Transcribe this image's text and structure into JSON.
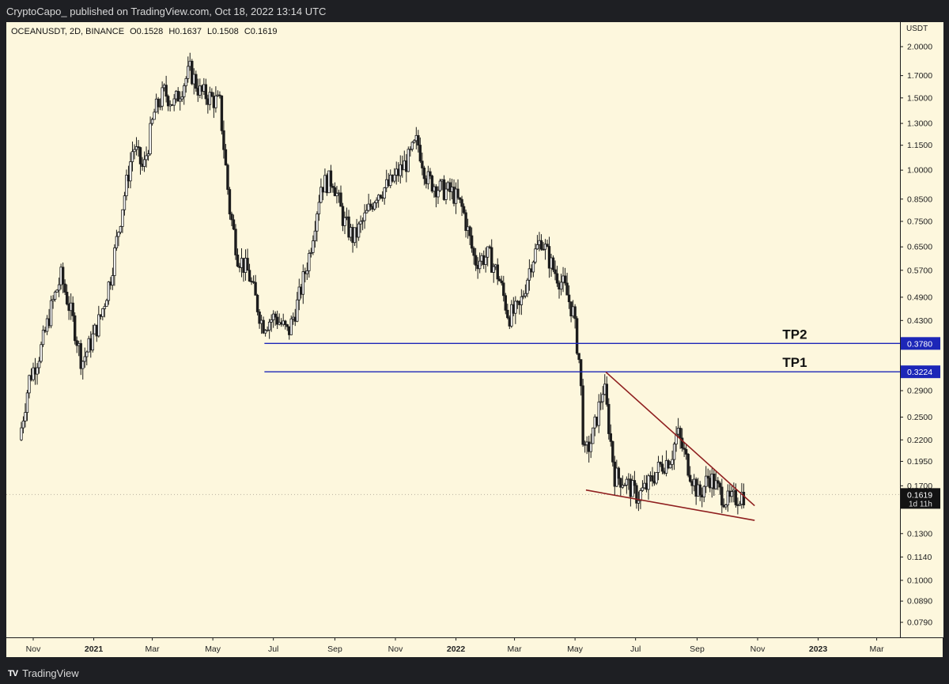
{
  "header": {
    "published_by": "CryptoCapo_ published on TradingView.com, Oct 18, 2022 13:14 UTC"
  },
  "symbol": {
    "name": "OCEANUSDT, 2D, BINANCE",
    "open": "O0.1528",
    "high": "H0.1637",
    "low": "L0.1508",
    "close": "C0.1619"
  },
  "footer": {
    "brand": "TradingView",
    "logo_text": "TV"
  },
  "colors": {
    "background": "#fdf7dd",
    "candle_body": "#1c1c1c",
    "tp_line": "#1c26b8",
    "wedge_line": "#8f1f1f",
    "frame": "#1e1f23"
  },
  "chart_data": {
    "type": "candlestick",
    "title": "OCEANUSDT, 2D, BINANCE",
    "ylabel": "USDT",
    "yscale": "log",
    "ylim": [
      0.07,
      2.4
    ],
    "x_ticks": [
      "Nov",
      "2021",
      "Mar",
      "May",
      "Jul",
      "Sep",
      "Nov",
      "2022",
      "Mar",
      "May",
      "Jul",
      "Sep",
      "Nov",
      "2023",
      "Mar"
    ],
    "x_bold_ticks": [
      "2021",
      "2022",
      "2023"
    ],
    "y_ticks": [
      "2.0000",
      "1.7000",
      "1.5000",
      "1.3000",
      "1.1500",
      "1.0000",
      "0.8500",
      "0.7500",
      "0.6500",
      "0.5700",
      "0.4900",
      "0.4300",
      "0.2900",
      "0.2500",
      "0.2200",
      "0.1950",
      "0.1700",
      "0.1300",
      "0.1140",
      "0.1000",
      "0.0890",
      "0.0790"
    ],
    "current_price": {
      "label": "0.1619",
      "countdown": "1d 11h",
      "value": 0.1619
    },
    "levels": [
      {
        "name": "TP2",
        "value": 0.378,
        "label": "0.3780",
        "start": "2021-06-22"
      },
      {
        "name": "TP1",
        "value": 0.3224,
        "label": "0.3224",
        "start": "2021-06-22"
      }
    ],
    "wedge": {
      "upper": [
        [
          "2022-06-01",
          0.322
        ],
        [
          "2022-10-29",
          0.152
        ]
      ],
      "lower": [
        [
          "2022-05-12",
          0.166
        ],
        [
          "2022-10-29",
          0.14
        ]
      ]
    },
    "price_path": [
      [
        "2020-10-20",
        0.22
      ],
      [
        "2020-10-30",
        0.31
      ],
      [
        "2020-11-10",
        0.36
      ],
      [
        "2020-11-22",
        0.47
      ],
      [
        "2020-12-01",
        0.55
      ],
      [
        "2020-12-12",
        0.44
      ],
      [
        "2020-12-22",
        0.34
      ],
      [
        "2020-12-31",
        0.38
      ],
      [
        "2021-01-10",
        0.44
      ],
      [
        "2021-01-20",
        0.55
      ],
      [
        "2021-02-01",
        0.82
      ],
      [
        "2021-02-12",
        1.15
      ],
      [
        "2021-02-22",
        1.0
      ],
      [
        "2021-03-05",
        1.38
      ],
      [
        "2021-03-15",
        1.55
      ],
      [
        "2021-03-25",
        1.45
      ],
      [
        "2021-04-02",
        1.6
      ],
      [
        "2021-04-10",
        1.75
      ],
      [
        "2021-04-20",
        1.55
      ],
      [
        "2021-05-01",
        1.5
      ],
      [
        "2021-05-10",
        1.45
      ],
      [
        "2021-05-20",
        0.8
      ],
      [
        "2021-05-28",
        0.62
      ],
      [
        "2021-06-08",
        0.56
      ],
      [
        "2021-06-22",
        0.42
      ],
      [
        "2021-07-05",
        0.44
      ],
      [
        "2021-07-18",
        0.4
      ],
      [
        "2021-07-28",
        0.48
      ],
      [
        "2021-08-08",
        0.62
      ],
      [
        "2021-08-20",
        0.92
      ],
      [
        "2021-09-01",
        0.95
      ],
      [
        "2021-09-12",
        0.75
      ],
      [
        "2021-09-22",
        0.68
      ],
      [
        "2021-10-05",
        0.78
      ],
      [
        "2021-10-15",
        0.88
      ],
      [
        "2021-10-28",
        0.92
      ],
      [
        "2021-11-05",
        0.98
      ],
      [
        "2021-11-15",
        1.05
      ],
      [
        "2021-11-25",
        1.18
      ],
      [
        "2021-12-05",
        0.95
      ],
      [
        "2021-12-18",
        0.9
      ],
      [
        "2021-12-31",
        0.88
      ],
      [
        "2022-01-10",
        0.8
      ],
      [
        "2022-01-22",
        0.6
      ],
      [
        "2022-02-05",
        0.62
      ],
      [
        "2022-02-15",
        0.55
      ],
      [
        "2022-02-25",
        0.44
      ],
      [
        "2022-03-08",
        0.46
      ],
      [
        "2022-03-20",
        0.6
      ],
      [
        "2022-03-30",
        0.68
      ],
      [
        "2022-04-10",
        0.58
      ],
      [
        "2022-04-22",
        0.52
      ],
      [
        "2022-05-01",
        0.45
      ],
      [
        "2022-05-08",
        0.33
      ],
      [
        "2022-05-12",
        0.2
      ],
      [
        "2022-05-20",
        0.22
      ],
      [
        "2022-06-01",
        0.3
      ],
      [
        "2022-06-12",
        0.18
      ],
      [
        "2022-06-22",
        0.175
      ],
      [
        "2022-07-05",
        0.16
      ],
      [
        "2022-07-15",
        0.17
      ],
      [
        "2022-07-28",
        0.19
      ],
      [
        "2022-08-08",
        0.2
      ],
      [
        "2022-08-14",
        0.23
      ],
      [
        "2022-08-25",
        0.19
      ],
      [
        "2022-09-05",
        0.16
      ],
      [
        "2022-09-15",
        0.18
      ],
      [
        "2022-09-25",
        0.165
      ],
      [
        "2022-10-05",
        0.155
      ],
      [
        "2022-10-18",
        0.1619
      ]
    ]
  }
}
